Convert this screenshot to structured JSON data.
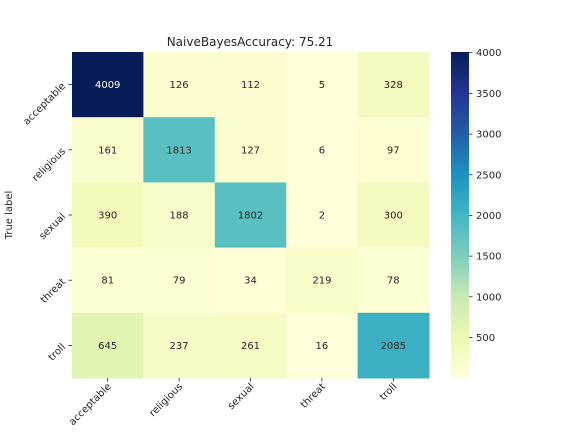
{
  "chart_data": {
    "type": "heatmap",
    "title": "NaiveBayesAccuracy: 75.21",
    "ylabel": "True label",
    "xlabel": "",
    "row_labels": [
      "acceptable",
      "religious",
      "sexual",
      "threat",
      "troll"
    ],
    "col_labels": [
      "acceptable",
      "religious",
      "sexual",
      "threat",
      "troll"
    ],
    "values": [
      [
        4009,
        126,
        112,
        5,
        328
      ],
      [
        161,
        1813,
        127,
        6,
        97
      ],
      [
        390,
        188,
        1802,
        2,
        300
      ],
      [
        81,
        79,
        34,
        219,
        78
      ],
      [
        645,
        237,
        261,
        16,
        2085
      ]
    ],
    "vmin": 2,
    "vmax": 4009,
    "colormap": "YlGnBu",
    "colorbar_ticks": [
      500,
      1000,
      1500,
      2000,
      2500,
      3000,
      3500,
      4000
    ]
  }
}
